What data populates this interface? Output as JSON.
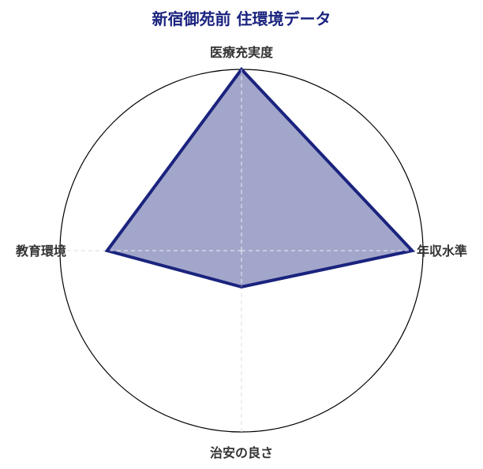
{
  "chart_data": {
    "type": "radar",
    "title": "新宿御苑前 住環境データ",
    "categories": [
      "医療充実度",
      "年収水準",
      "治安の良さ",
      "教育環境"
    ],
    "series": [
      {
        "values": [
          100,
          94,
          20,
          74
        ]
      }
    ],
    "rlim": [
      0,
      100
    ],
    "grid": true,
    "colors": {
      "title": "#1a237e",
      "line": "#1a237e",
      "fill": "#a2a6ca",
      "circle": "#000000",
      "axis": "#dddddd"
    }
  }
}
